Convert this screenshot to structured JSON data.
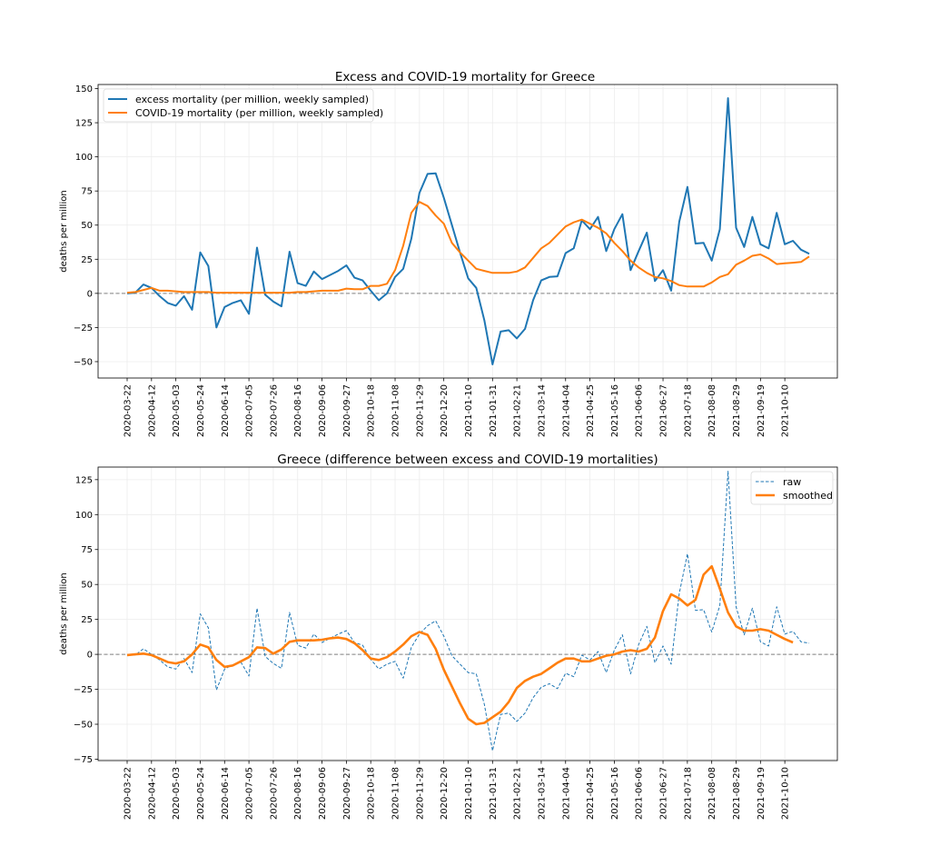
{
  "chart_data": [
    {
      "type": "line",
      "title": "Excess and COVID-19 mortality for Greece",
      "xlabel": "",
      "ylabel": "deaths per million",
      "ylim": [
        -62,
        153
      ],
      "yticks": [
        -50,
        -25,
        0,
        25,
        50,
        75,
        100,
        125,
        150
      ],
      "ytick_labels": [
        "−50",
        "−25",
        "0",
        "25",
        "50",
        "75",
        "100",
        "125",
        "150"
      ],
      "x_start": "2020-03-22",
      "x_step": "weekly",
      "xticks": [
        "2020-03-22",
        "2020-04-12",
        "2020-05-03",
        "2020-05-24",
        "2020-06-14",
        "2020-07-05",
        "2020-07-26",
        "2020-08-16",
        "2020-09-06",
        "2020-09-27",
        "2020-10-18",
        "2020-11-08",
        "2020-11-29",
        "2020-12-20",
        "2021-01-10",
        "2021-01-31",
        "2021-02-21",
        "2021-03-14",
        "2021-04-04",
        "2021-04-25",
        "2021-05-16",
        "2021-06-06",
        "2021-06-27",
        "2021-07-18",
        "2021-08-08",
        "2021-08-29",
        "2021-09-19",
        "2021-10-10"
      ],
      "grid": true,
      "reference_line": 0,
      "legend": "top-left",
      "series": [
        {
          "name": "excess mortality (per million, weekly sampled)",
          "color": "#1f77b4",
          "style": "solid",
          "values": [
            0,
            0.5,
            6.5,
            4,
            -2,
            -7,
            -9,
            -2,
            -12,
            30,
            20,
            -25,
            -10,
            -7,
            -5,
            -15,
            33.5,
            -1,
            -6,
            -9.5,
            30.5,
            7.5,
            5.5,
            16,
            10.5,
            13.5,
            16.5,
            20.5,
            11.5,
            9.5,
            2,
            -5,
            0,
            12,
            18,
            40,
            73.5,
            87.5,
            88,
            70,
            50,
            30,
            11,
            4,
            -20,
            -52,
            -28,
            -27,
            -33,
            -26,
            -5,
            9.5,
            12,
            12.5,
            29.5,
            33,
            53.5,
            47,
            56,
            31,
            47,
            58,
            17,
            31,
            44.5,
            9,
            17,
            2,
            52.5,
            78,
            36.5,
            37,
            24,
            47,
            143,
            48,
            34,
            56,
            36,
            33,
            59,
            36,
            38.5,
            32,
            29
          ]
        },
        {
          "name": "COVID-19 mortality (per million, weekly sampled)",
          "color": "#ff7f0e",
          "style": "solid",
          "values": [
            0.5,
            1,
            2.5,
            4,
            2,
            2,
            1.5,
            1,
            1,
            1,
            1,
            0.5,
            0.5,
            0.5,
            0.5,
            0.5,
            0.5,
            0.5,
            0.5,
            0.5,
            0.5,
            1,
            1,
            1.5,
            2,
            2,
            2,
            3.5,
            3,
            3,
            5.5,
            5.5,
            7,
            17,
            35,
            59,
            67,
            64,
            57,
            51,
            37,
            30,
            24,
            18,
            16.5,
            15,
            15,
            15,
            16,
            19,
            26,
            33,
            37,
            43,
            49,
            52,
            54,
            51,
            48,
            44,
            37,
            31,
            24,
            19,
            15,
            12,
            11,
            9,
            6,
            5,
            5,
            5,
            8,
            12,
            14,
            21,
            24,
            27.5,
            28.5,
            25.5,
            21.5,
            22,
            22.5,
            23,
            27
          ]
        }
      ]
    },
    {
      "type": "line",
      "title": "Greece (difference between excess and COVID-19 mortalities)",
      "xlabel": "",
      "ylabel": "deaths per million",
      "ylim": [
        -76,
        134
      ],
      "yticks": [
        -75,
        -50,
        -25,
        0,
        25,
        50,
        75,
        100,
        125
      ],
      "ytick_labels": [
        "−75",
        "−50",
        "−25",
        "0",
        "25",
        "50",
        "75",
        "100",
        "125"
      ],
      "x_start": "2020-03-22",
      "x_step": "weekly",
      "xticks": [
        "2020-03-22",
        "2020-04-12",
        "2020-05-03",
        "2020-05-24",
        "2020-06-14",
        "2020-07-05",
        "2020-07-26",
        "2020-08-16",
        "2020-09-06",
        "2020-09-27",
        "2020-10-18",
        "2020-11-08",
        "2020-11-29",
        "2020-12-20",
        "2021-01-10",
        "2021-01-31",
        "2021-02-21",
        "2021-03-14",
        "2021-04-04",
        "2021-04-25",
        "2021-05-16",
        "2021-06-06",
        "2021-06-27",
        "2021-07-18",
        "2021-08-08",
        "2021-08-29",
        "2021-09-19",
        "2021-10-10"
      ],
      "grid": true,
      "reference_line": 0,
      "legend": "top-right",
      "series": [
        {
          "name": "raw",
          "color": "#1f77b4",
          "style": "dashed",
          "values": [
            -0.5,
            -0.5,
            4,
            0,
            -4,
            -9,
            -10.5,
            -3,
            -13,
            29,
            19,
            -25.5,
            -10.5,
            -7.5,
            -5.5,
            -15.5,
            33,
            -1.5,
            -6.5,
            -10,
            30,
            6.5,
            4.5,
            14.5,
            8.5,
            11.5,
            14.5,
            17,
            8.5,
            6.5,
            -3.5,
            -10.5,
            -7,
            -5,
            -17,
            5,
            14.5,
            20.5,
            24,
            13,
            -1,
            -7,
            -13,
            -14,
            -36,
            -69,
            -43,
            -42,
            -48,
            -42,
            -31,
            -23.5,
            -21,
            -24.5,
            -13.5,
            -16,
            -0.5,
            -4,
            2,
            -13,
            3,
            14,
            -14,
            7,
            20,
            -6,
            6,
            -7,
            43.5,
            72,
            31.5,
            32,
            16,
            35,
            131,
            34,
            14,
            33,
            9,
            6,
            34,
            14.5,
            16.5,
            9,
            8
          ]
        },
        {
          "name": "smoothed",
          "color": "#ff7f0e",
          "style": "solid",
          "values": [
            -0.5,
            0,
            0.5,
            -0.5,
            -3,
            -5.5,
            -6.5,
            -5,
            0,
            7,
            5,
            -4,
            -9,
            -8,
            -5,
            -2,
            5,
            4.5,
            0.5,
            3.5,
            9,
            10,
            10,
            10,
            10.5,
            11.5,
            12,
            11,
            8,
            3,
            -3,
            -4,
            -2,
            2,
            7,
            13,
            16,
            14,
            4,
            -11,
            -23,
            -35,
            -46,
            -50,
            -49,
            -45,
            -41,
            -34,
            -24,
            -19,
            -16,
            -14,
            -10,
            -6,
            -3,
            -3,
            -5,
            -5,
            -3,
            -1,
            0,
            2,
            3,
            2,
            4,
            12,
            31,
            43,
            40,
            35,
            39,
            57,
            63,
            47,
            30,
            20,
            17,
            17,
            18,
            17,
            14,
            11,
            8.5
          ]
        }
      ]
    }
  ]
}
